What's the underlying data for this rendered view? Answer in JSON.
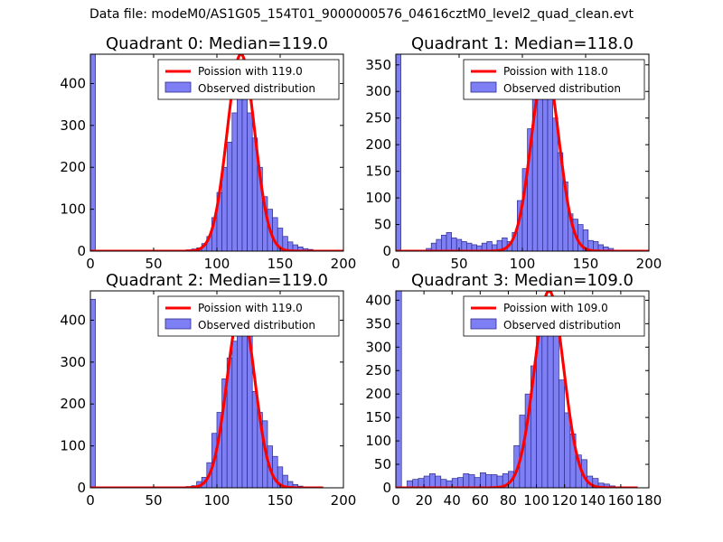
{
  "figure": {
    "suptitle": "Data file: modeM0/AS1G05_154T01_9000000576_04616cztM0_level2_quad_clean.evt"
  },
  "colors": {
    "bar_fill": "#7f7ff5",
    "bar_edge": "#2b2b8c",
    "poisson_line": "#ff0000"
  },
  "chart_data": [
    {
      "type": "bar",
      "title": "Quadrant 0: Median=119.0",
      "median": 119.0,
      "xlim": [
        0,
        200
      ],
      "ylim": [
        0,
        470
      ],
      "xticks": [
        0,
        50,
        100,
        150,
        200
      ],
      "xtick_labels": [
        "0",
        "50",
        "100",
        "150",
        "200"
      ],
      "yticks": [
        0,
        100,
        200,
        300,
        400
      ],
      "ytick_labels": [
        "0",
        "100",
        "200",
        "300",
        "400"
      ],
      "bin_width": 4,
      "bins": [
        {
          "x": 0,
          "h": 470
        },
        {
          "x": 72,
          "h": 2
        },
        {
          "x": 76,
          "h": 3
        },
        {
          "x": 80,
          "h": 5
        },
        {
          "x": 84,
          "h": 8
        },
        {
          "x": 88,
          "h": 18
        },
        {
          "x": 92,
          "h": 35
        },
        {
          "x": 96,
          "h": 80
        },
        {
          "x": 100,
          "h": 140
        },
        {
          "x": 104,
          "h": 200
        },
        {
          "x": 108,
          "h": 260
        },
        {
          "x": 112,
          "h": 330
        },
        {
          "x": 116,
          "h": 380
        },
        {
          "x": 120,
          "h": 420
        },
        {
          "x": 124,
          "h": 330
        },
        {
          "x": 128,
          "h": 270
        },
        {
          "x": 132,
          "h": 200
        },
        {
          "x": 136,
          "h": 130
        },
        {
          "x": 140,
          "h": 100
        },
        {
          "x": 144,
          "h": 80
        },
        {
          "x": 148,
          "h": 55
        },
        {
          "x": 152,
          "h": 35
        },
        {
          "x": 156,
          "h": 22
        },
        {
          "x": 160,
          "h": 15
        },
        {
          "x": 164,
          "h": 10
        },
        {
          "x": 168,
          "h": 6
        },
        {
          "x": 172,
          "h": 4
        },
        {
          "x": 176,
          "h": 2
        },
        {
          "x": 180,
          "h": 1
        }
      ],
      "poisson": {
        "label": "Poission with 119.0",
        "mean": 119.0,
        "peak": 470,
        "x_max": 200
      },
      "legend": {
        "line_label": "Poission with 119.0",
        "bar_label": "Observed distribution",
        "loc": "upper right"
      }
    },
    {
      "type": "bar",
      "title": "Quadrant 1: Median=118.0",
      "median": 118.0,
      "xlim": [
        0,
        200
      ],
      "ylim": [
        0,
        370
      ],
      "xticks": [
        0,
        50,
        100,
        150,
        200
      ],
      "xtick_labels": [
        "0",
        "50",
        "100",
        "150",
        "200"
      ],
      "yticks": [
        0,
        50,
        100,
        150,
        200,
        250,
        300,
        350
      ],
      "ytick_labels": [
        "0",
        "50",
        "100",
        "150",
        "200",
        "250",
        "300",
        "350"
      ],
      "bin_width": 4,
      "bins": [
        {
          "x": 0,
          "h": 370
        },
        {
          "x": 24,
          "h": 5
        },
        {
          "x": 28,
          "h": 15
        },
        {
          "x": 32,
          "h": 22
        },
        {
          "x": 36,
          "h": 30
        },
        {
          "x": 40,
          "h": 35
        },
        {
          "x": 44,
          "h": 25
        },
        {
          "x": 48,
          "h": 22
        },
        {
          "x": 52,
          "h": 18
        },
        {
          "x": 56,
          "h": 15
        },
        {
          "x": 60,
          "h": 12
        },
        {
          "x": 64,
          "h": 10
        },
        {
          "x": 68,
          "h": 15
        },
        {
          "x": 72,
          "h": 18
        },
        {
          "x": 76,
          "h": 12
        },
        {
          "x": 80,
          "h": 20
        },
        {
          "x": 84,
          "h": 25
        },
        {
          "x": 88,
          "h": 18
        },
        {
          "x": 92,
          "h": 35
        },
        {
          "x": 96,
          "h": 95
        },
        {
          "x": 100,
          "h": 155
        },
        {
          "x": 104,
          "h": 230
        },
        {
          "x": 108,
          "h": 300
        },
        {
          "x": 112,
          "h": 340
        },
        {
          "x": 116,
          "h": 350
        },
        {
          "x": 120,
          "h": 320
        },
        {
          "x": 124,
          "h": 250
        },
        {
          "x": 128,
          "h": 185
        },
        {
          "x": 132,
          "h": 130
        },
        {
          "x": 136,
          "h": 70
        },
        {
          "x": 140,
          "h": 60
        },
        {
          "x": 144,
          "h": 50
        },
        {
          "x": 148,
          "h": 40
        },
        {
          "x": 152,
          "h": 20
        },
        {
          "x": 156,
          "h": 18
        },
        {
          "x": 160,
          "h": 12
        },
        {
          "x": 164,
          "h": 8
        },
        {
          "x": 168,
          "h": 5
        },
        {
          "x": 172,
          "h": 2
        }
      ],
      "poisson": {
        "label": "Poission with 118.0",
        "mean": 118.0,
        "peak": 350,
        "x_max": 200
      },
      "legend": {
        "line_label": "Poission with 118.0",
        "bar_label": "Observed distribution",
        "loc": "upper right"
      }
    },
    {
      "type": "bar",
      "title": "Quadrant 2: Median=119.0",
      "median": 119.0,
      "xlim": [
        0,
        200
      ],
      "ylim": [
        0,
        470
      ],
      "xticks": [
        0,
        50,
        100,
        150,
        200
      ],
      "xtick_labels": [
        "0",
        "50",
        "100",
        "150",
        "200"
      ],
      "yticks": [
        0,
        100,
        200,
        300,
        400
      ],
      "ytick_labels": [
        "0",
        "100",
        "200",
        "300",
        "400"
      ],
      "bin_width": 4,
      "bins": [
        {
          "x": 0,
          "h": 450
        },
        {
          "x": 76,
          "h": 3
        },
        {
          "x": 80,
          "h": 5
        },
        {
          "x": 84,
          "h": 15
        },
        {
          "x": 88,
          "h": 25
        },
        {
          "x": 92,
          "h": 60
        },
        {
          "x": 96,
          "h": 130
        },
        {
          "x": 100,
          "h": 180
        },
        {
          "x": 104,
          "h": 260
        },
        {
          "x": 108,
          "h": 310
        },
        {
          "x": 112,
          "h": 350
        },
        {
          "x": 116,
          "h": 400
        },
        {
          "x": 120,
          "h": 420
        },
        {
          "x": 124,
          "h": 380
        },
        {
          "x": 128,
          "h": 230
        },
        {
          "x": 132,
          "h": 180
        },
        {
          "x": 136,
          "h": 160
        },
        {
          "x": 140,
          "h": 100
        },
        {
          "x": 144,
          "h": 75
        },
        {
          "x": 148,
          "h": 50
        },
        {
          "x": 152,
          "h": 30
        },
        {
          "x": 156,
          "h": 15
        },
        {
          "x": 160,
          "h": 8
        },
        {
          "x": 164,
          "h": 4
        },
        {
          "x": 168,
          "h": 2
        },
        {
          "x": 172,
          "h": 1
        },
        {
          "x": 176,
          "h": 1
        }
      ],
      "poisson": {
        "label": "Poission with 119.0",
        "mean": 119.0,
        "peak": 430,
        "x_max": 184
      },
      "legend": {
        "line_label": "Poission with 119.0",
        "bar_label": "Observed distribution",
        "loc": "upper right"
      }
    },
    {
      "type": "bar",
      "title": "Quadrant 3: Median=109.0",
      "median": 109.0,
      "xlim": [
        0,
        180
      ],
      "ylim": [
        0,
        420
      ],
      "xticks": [
        0,
        20,
        40,
        60,
        80,
        100,
        120,
        140,
        160,
        180
      ],
      "xtick_labels": [
        "0",
        "20",
        "40",
        "60",
        "80",
        "100",
        "120",
        "140",
        "160",
        "180"
      ],
      "yticks": [
        0,
        50,
        100,
        150,
        200,
        250,
        300,
        350,
        400
      ],
      "ytick_labels": [
        "0",
        "50",
        "100",
        "150",
        "200",
        "250",
        "300",
        "350",
        "400"
      ],
      "bin_width": 4,
      "bins": [
        {
          "x": 0,
          "h": 420
        },
        {
          "x": 8,
          "h": 15
        },
        {
          "x": 12,
          "h": 18
        },
        {
          "x": 16,
          "h": 20
        },
        {
          "x": 20,
          "h": 25
        },
        {
          "x": 24,
          "h": 30
        },
        {
          "x": 28,
          "h": 25
        },
        {
          "x": 32,
          "h": 18
        },
        {
          "x": 36,
          "h": 15
        },
        {
          "x": 40,
          "h": 20
        },
        {
          "x": 44,
          "h": 22
        },
        {
          "x": 48,
          "h": 30
        },
        {
          "x": 52,
          "h": 28
        },
        {
          "x": 56,
          "h": 22
        },
        {
          "x": 60,
          "h": 32
        },
        {
          "x": 64,
          "h": 28
        },
        {
          "x": 68,
          "h": 28
        },
        {
          "x": 72,
          "h": 25
        },
        {
          "x": 76,
          "h": 30
        },
        {
          "x": 80,
          "h": 35
        },
        {
          "x": 84,
          "h": 90
        },
        {
          "x": 88,
          "h": 155
        },
        {
          "x": 92,
          "h": 200
        },
        {
          "x": 96,
          "h": 260
        },
        {
          "x": 100,
          "h": 340
        },
        {
          "x": 104,
          "h": 380
        },
        {
          "x": 108,
          "h": 360
        },
        {
          "x": 112,
          "h": 330
        },
        {
          "x": 116,
          "h": 230
        },
        {
          "x": 120,
          "h": 160
        },
        {
          "x": 124,
          "h": 115
        },
        {
          "x": 128,
          "h": 70
        },
        {
          "x": 132,
          "h": 60
        },
        {
          "x": 136,
          "h": 25
        },
        {
          "x": 140,
          "h": 20
        },
        {
          "x": 144,
          "h": 10
        },
        {
          "x": 148,
          "h": 8
        },
        {
          "x": 152,
          "h": 4
        },
        {
          "x": 156,
          "h": 2
        }
      ],
      "poisson": {
        "label": "Poission with 109.0",
        "mean": 109.0,
        "peak": 420,
        "x_max": 172
      },
      "legend": {
        "line_label": "Poission with 109.0",
        "bar_label": "Observed distribution",
        "loc": "upper right"
      }
    }
  ]
}
